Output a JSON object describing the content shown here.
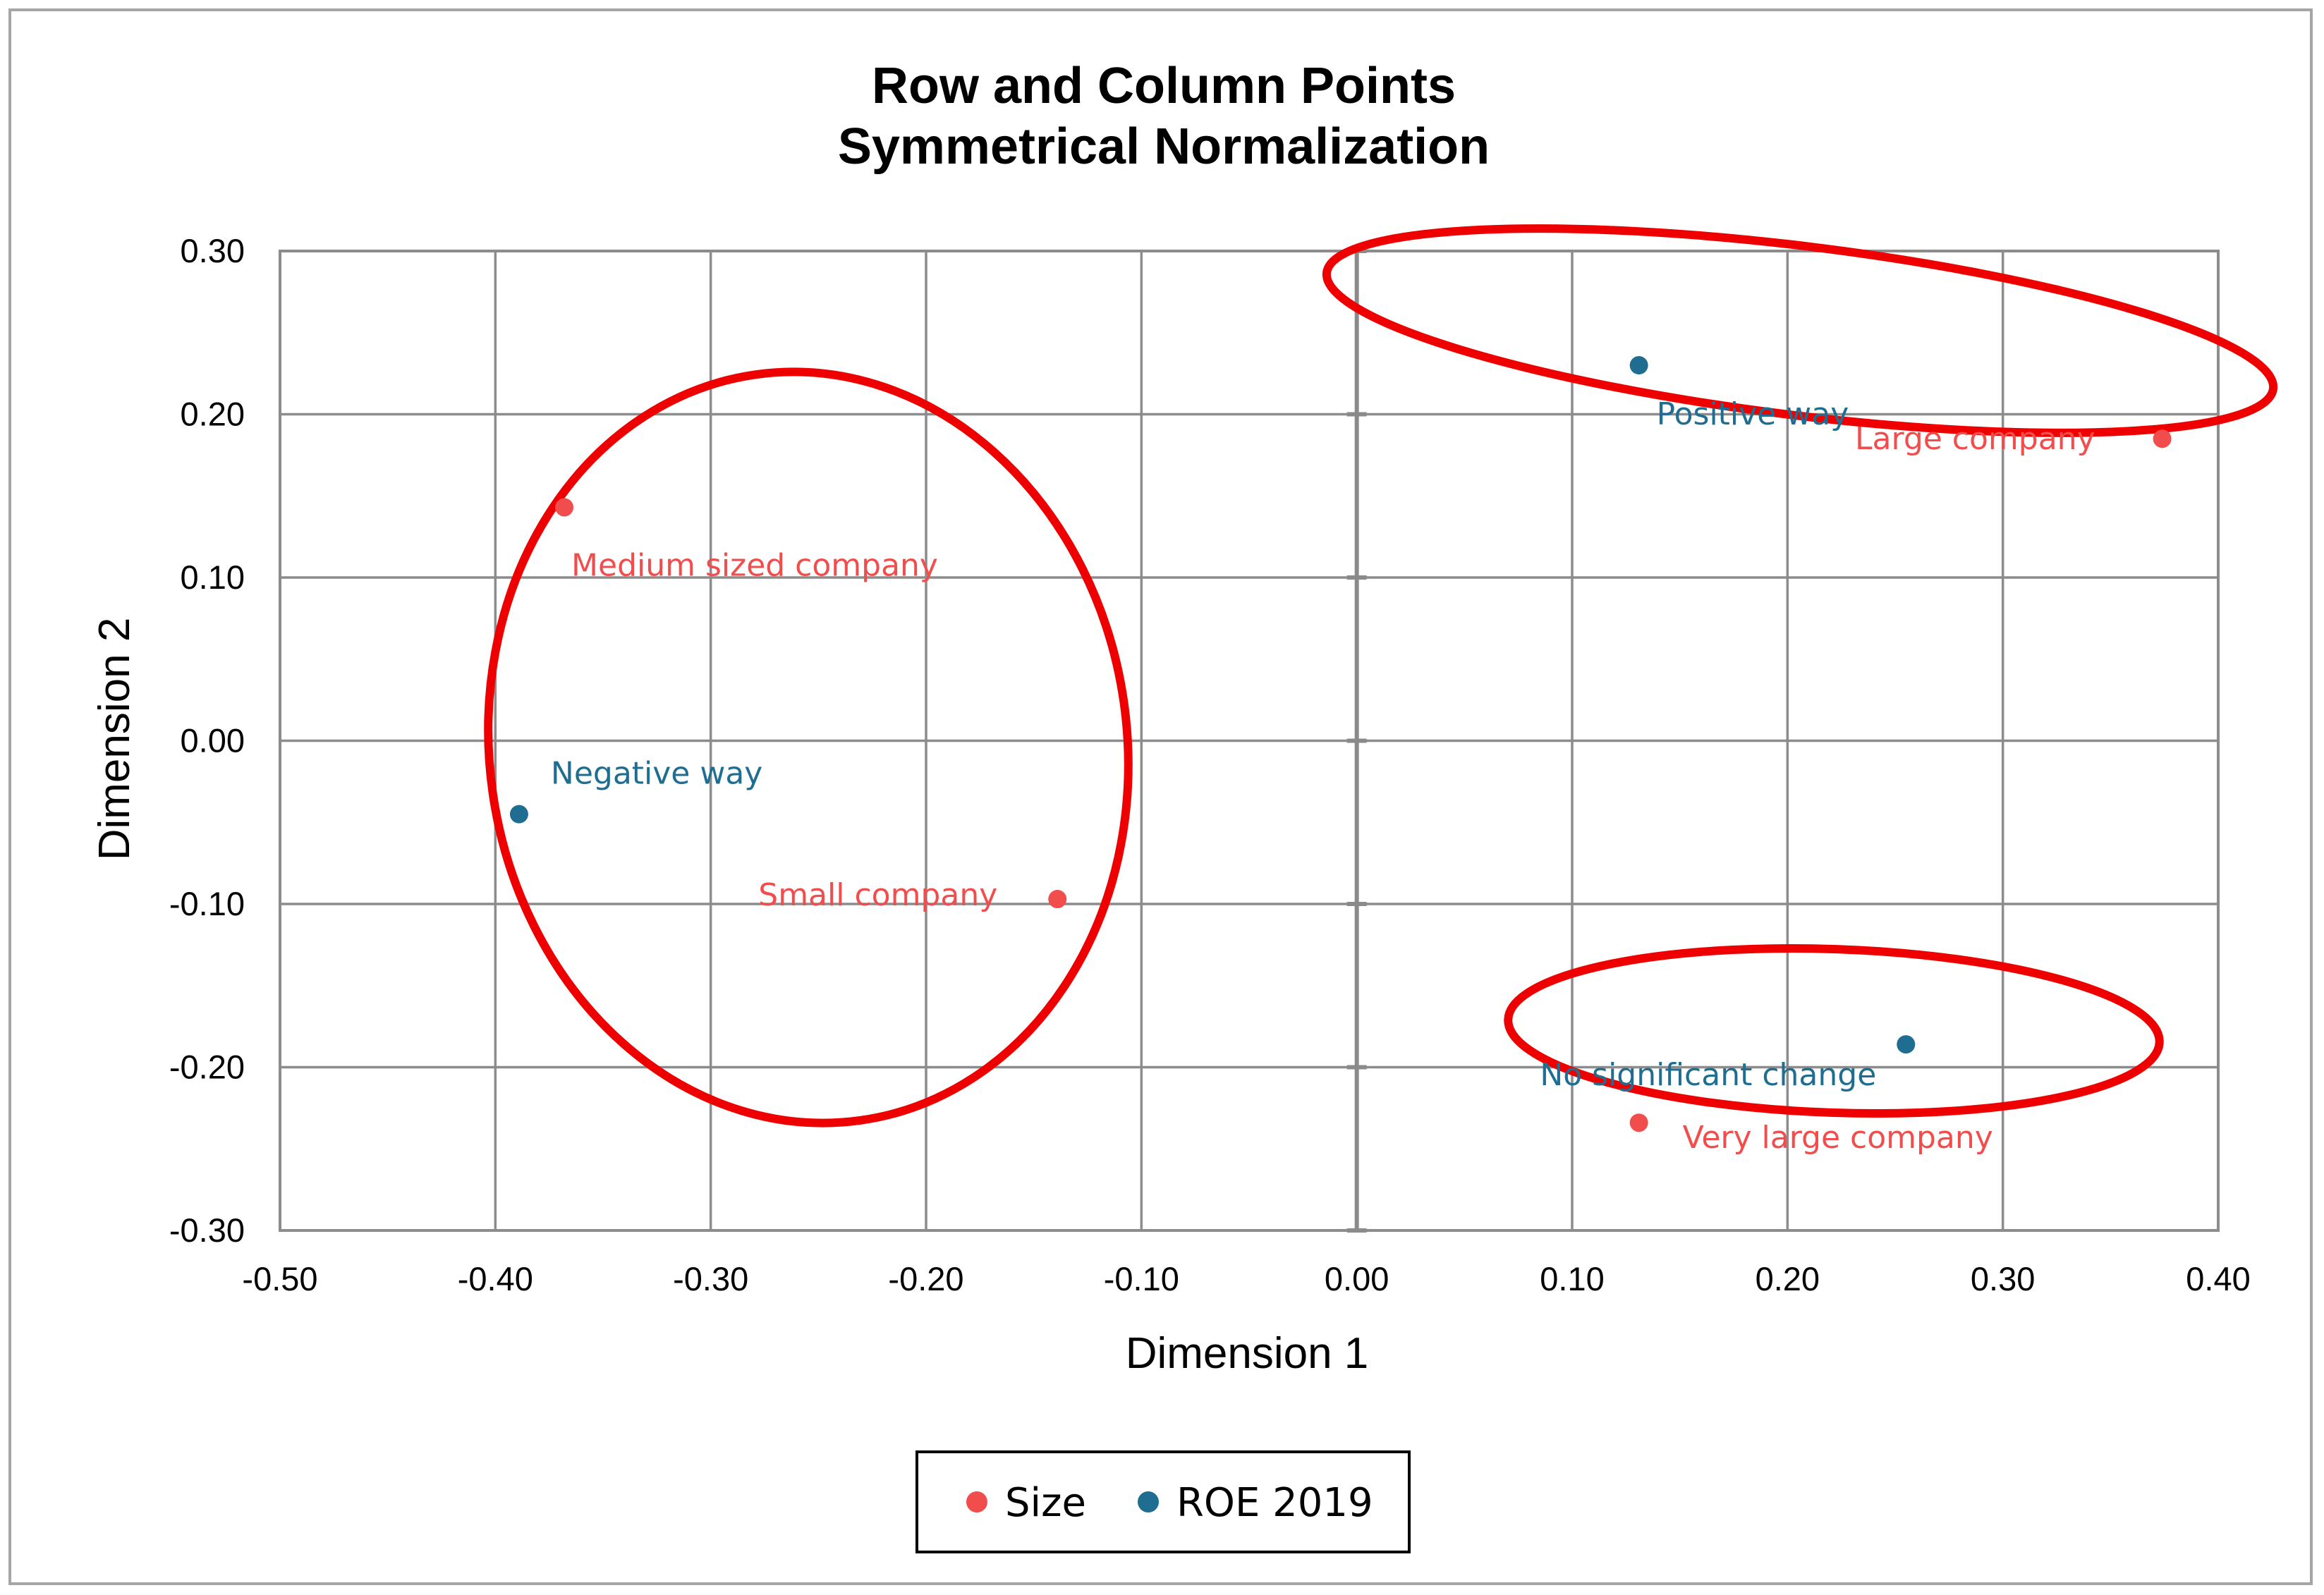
{
  "chart_data": {
    "type": "scatter",
    "title": [
      "Row and Column Points",
      "Symmetrical Normalization"
    ],
    "xlabel": "Dimension 1",
    "ylabel": "Dimension 2",
    "xlim": [
      -0.5,
      0.4
    ],
    "ylim": [
      -0.3,
      0.3
    ],
    "x_ticks": [
      "-0.50",
      "-0.40",
      "-0.30",
      "-0.20",
      "-0.10",
      "0.00",
      "0.10",
      "0.20",
      "0.30",
      "0.40"
    ],
    "y_ticks": [
      "0.30",
      "0.20",
      "0.10",
      "0.00",
      "-0.10",
      "-0.20",
      "-0.30"
    ],
    "grid": true,
    "legend_position": "bottom-center",
    "series": [
      {
        "name": "Size",
        "color": "#f24d4d",
        "points": [
          {
            "label": "Medium sized company",
            "x": -0.368,
            "y": 0.143
          },
          {
            "label": "Small company",
            "x": -0.139,
            "y": -0.097
          },
          {
            "label": "Large company",
            "x": 0.374,
            "y": 0.185
          },
          {
            "label": "Very large company",
            "x": 0.131,
            "y": -0.234
          }
        ]
      },
      {
        "name": "ROE 2019",
        "color": "#1f6e91",
        "points": [
          {
            "label": "Negative way",
            "x": -0.389,
            "y": -0.045
          },
          {
            "label": "Positive way",
            "x": 0.131,
            "y": 0.23
          },
          {
            "label": "No significant change",
            "x": 0.255,
            "y": -0.186
          }
        ]
      }
    ],
    "annotations": {
      "type": "red-ellipses",
      "color": "#ee0000",
      "count": 3
    }
  }
}
